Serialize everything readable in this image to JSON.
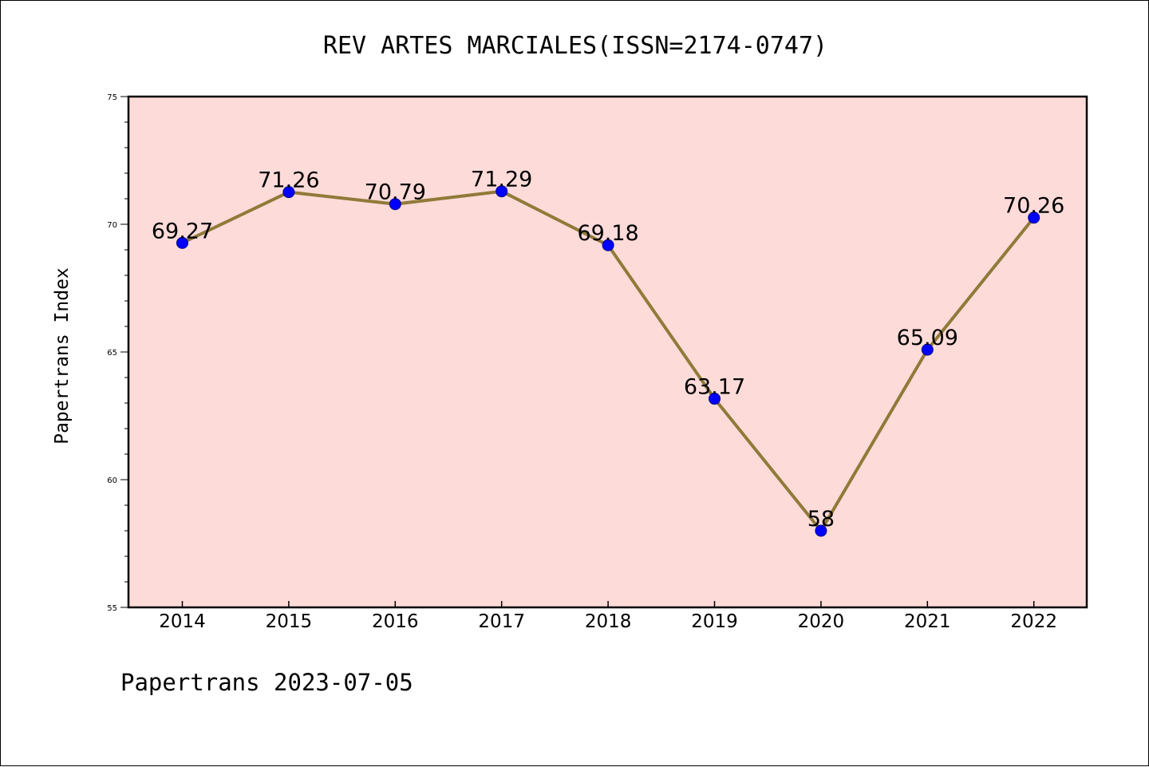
{
  "chart_data": {
    "type": "line",
    "title": "REV ARTES MARCIALES(ISSN=2174-0747)",
    "xlabel": "",
    "ylabel": "Papertrans Index",
    "categories": [
      "2014",
      "2015",
      "2016",
      "2017",
      "2018",
      "2019",
      "2020",
      "2021",
      "2022"
    ],
    "series": [
      {
        "values": [
          69.27,
          71.26,
          70.79,
          71.29,
          69.18,
          63.17,
          58,
          65.09,
          70.26
        ],
        "labels": [
          "69.27",
          "71.26",
          "70.79",
          "71.29",
          "69.18",
          "63.17",
          "58",
          "65.09",
          "70.26"
        ]
      }
    ],
    "ylim": [
      55,
      75
    ],
    "yticks": [
      "55",
      "60",
      "65",
      "70",
      "75"
    ],
    "grid": false,
    "legend": "none"
  },
  "footer": "Papertrans 2023-07-05",
  "colors": {
    "plot_background": "#fddbd9",
    "line": "#8f7a38",
    "marker": "#0000ff",
    "marker_edge": "#00008b",
    "axis": "#000000"
  }
}
